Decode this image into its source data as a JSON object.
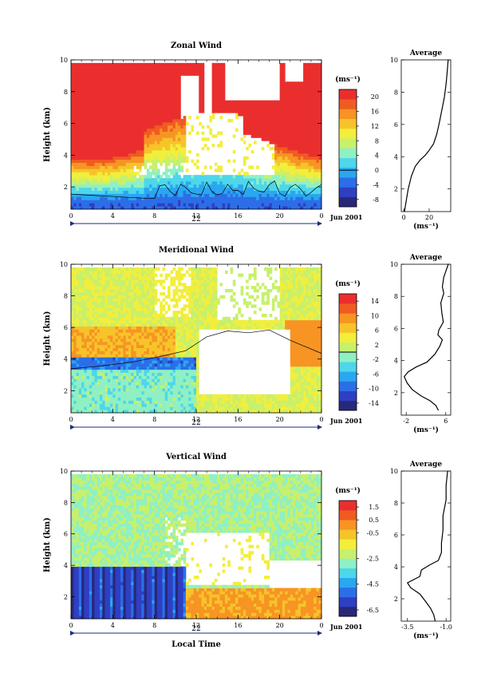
{
  "page": {
    "date_label": "Jun 2001",
    "day_label": "22",
    "time_label": "Local Time",
    "unit_label": "(ms⁻¹)",
    "average_title": "Average",
    "ylabel": "Height (km)"
  },
  "colors": {
    "scale": [
      "#28287a",
      "#2e3fc2",
      "#2c6ee8",
      "#2aa7ef",
      "#4ed6ea",
      "#8ff0c4",
      "#c7f06d",
      "#f2ee3c",
      "#f6c42a",
      "#f79424",
      "#f05b22",
      "#ea2e2e"
    ],
    "contour": "#000000",
    "axis": "#000000",
    "arrow": "#1c2e7a"
  },
  "chart_data": [
    {
      "type": "heatmap",
      "title": "Zonal Wind",
      "xlabel": "",
      "ylabel": "Height (km)",
      "xlim": [
        0,
        24
      ],
      "ylim": [
        0.6,
        10
      ],
      "xticks": [
        "0",
        "4",
        "8",
        "12",
        "16",
        "20",
        "0"
      ],
      "yticks": [
        "2",
        "4",
        "6",
        "8",
        "10"
      ],
      "colorbar": {
        "ticks": [
          "-8",
          "-4",
          "0",
          "4",
          "8",
          "12",
          "16",
          "20"
        ],
        "range": [
          -10,
          22
        ],
        "zero_line": 0
      },
      "average": {
        "title": "Average",
        "xlabel": "(ms⁻¹)",
        "xticks": [
          "0",
          "20"
        ],
        "yticks": [
          "2",
          "4",
          "6",
          "8",
          "10"
        ],
        "xlim": [
          -2,
          37
        ],
        "profile": [
          [
            0.5,
            0.6
          ],
          [
            1.8,
            1.2
          ],
          [
            3.5,
            2.0
          ],
          [
            6.0,
            2.8
          ],
          [
            9.0,
            3.4
          ],
          [
            13.0,
            3.8
          ],
          [
            17.0,
            4.1
          ],
          [
            20.0,
            4.4
          ],
          [
            23.5,
            4.8
          ],
          [
            26.0,
            5.4
          ],
          [
            28.0,
            6.1
          ],
          [
            30.0,
            6.9
          ],
          [
            32.0,
            7.7
          ],
          [
            33.5,
            8.6
          ],
          [
            34.5,
            9.5
          ],
          [
            35.0,
            10.0
          ]
        ]
      }
    },
    {
      "type": "heatmap",
      "title": "Meridional Wind",
      "xlabel": "",
      "ylabel": "Height (km)",
      "xlim": [
        0,
        24
      ],
      "ylim": [
        0.6,
        10
      ],
      "xticks": [
        "0",
        "4",
        "8",
        "12",
        "16",
        "20",
        "0"
      ],
      "yticks": [
        "2",
        "4",
        "6",
        "8",
        "10"
      ],
      "colorbar": {
        "ticks": [
          "-14",
          "-10",
          "-6",
          "-2",
          "2",
          "6",
          "10",
          "14"
        ],
        "range": [
          -16,
          16
        ],
        "zero_line": 0
      },
      "average": {
        "title": "Average",
        "xlabel": "(ms⁻¹)",
        "xticks": [
          "-2",
          "6"
        ],
        "yticks": [
          "2",
          "4",
          "6",
          "8",
          "10"
        ],
        "xlim": [
          -3,
          7
        ],
        "profile": [
          [
            4.5,
            0.9
          ],
          [
            4.0,
            1.2
          ],
          [
            2.8,
            1.5
          ],
          [
            1.0,
            1.8
          ],
          [
            -0.8,
            2.2
          ],
          [
            -1.8,
            2.6
          ],
          [
            -2.4,
            3.0
          ],
          [
            -1.6,
            3.3
          ],
          [
            0.0,
            3.6
          ],
          [
            2.2,
            3.9
          ],
          [
            3.8,
            4.4
          ],
          [
            4.8,
            4.9
          ],
          [
            5.3,
            5.3
          ],
          [
            4.4,
            5.6
          ],
          [
            4.6,
            5.9
          ],
          [
            5.5,
            6.4
          ],
          [
            5.2,
            7.0
          ],
          [
            5.0,
            7.6
          ],
          [
            5.6,
            8.2
          ],
          [
            5.3,
            8.6
          ],
          [
            5.6,
            9.2
          ],
          [
            6.5,
            10.0
          ]
        ]
      }
    },
    {
      "type": "heatmap",
      "title": "Vertical Wind",
      "xlabel": "Local Time",
      "ylabel": "Height (km)",
      "xlim": [
        0,
        24
      ],
      "ylim": [
        0.6,
        10
      ],
      "xticks": [
        "0",
        "4",
        "8",
        "12",
        "16",
        "20",
        "0"
      ],
      "yticks": [
        "2",
        "4",
        "6",
        "8",
        "10"
      ],
      "colorbar": {
        "ticks": [
          "-6.5",
          "-4.5",
          "-2.5",
          "-0.5",
          "0.5",
          "1.5"
        ],
        "range": [
          -7,
          2
        ],
        "zero_line": null
      },
      "average": {
        "title": "Average",
        "xlabel": "(ms⁻¹)",
        "xticks": [
          "-3.5",
          "-1.0"
        ],
        "yticks": [
          "2",
          "4",
          "6",
          "8",
          "10"
        ],
        "xlim": [
          -3.9,
          -0.7
        ],
        "profile": [
          [
            -1.7,
            0.6
          ],
          [
            -1.8,
            1.0
          ],
          [
            -2.0,
            1.4
          ],
          [
            -2.3,
            1.8
          ],
          [
            -2.7,
            2.3
          ],
          [
            -3.3,
            2.7
          ],
          [
            -3.5,
            3.0
          ],
          [
            -2.7,
            3.4
          ],
          [
            -2.6,
            3.8
          ],
          [
            -2.1,
            4.1
          ],
          [
            -1.5,
            4.4
          ],
          [
            -1.3,
            4.9
          ],
          [
            -1.3,
            5.5
          ],
          [
            -1.2,
            6.3
          ],
          [
            -1.2,
            7.2
          ],
          [
            -1.0,
            8.2
          ],
          [
            -1.0,
            9.1
          ],
          [
            -0.9,
            10.0
          ]
        ]
      }
    }
  ]
}
